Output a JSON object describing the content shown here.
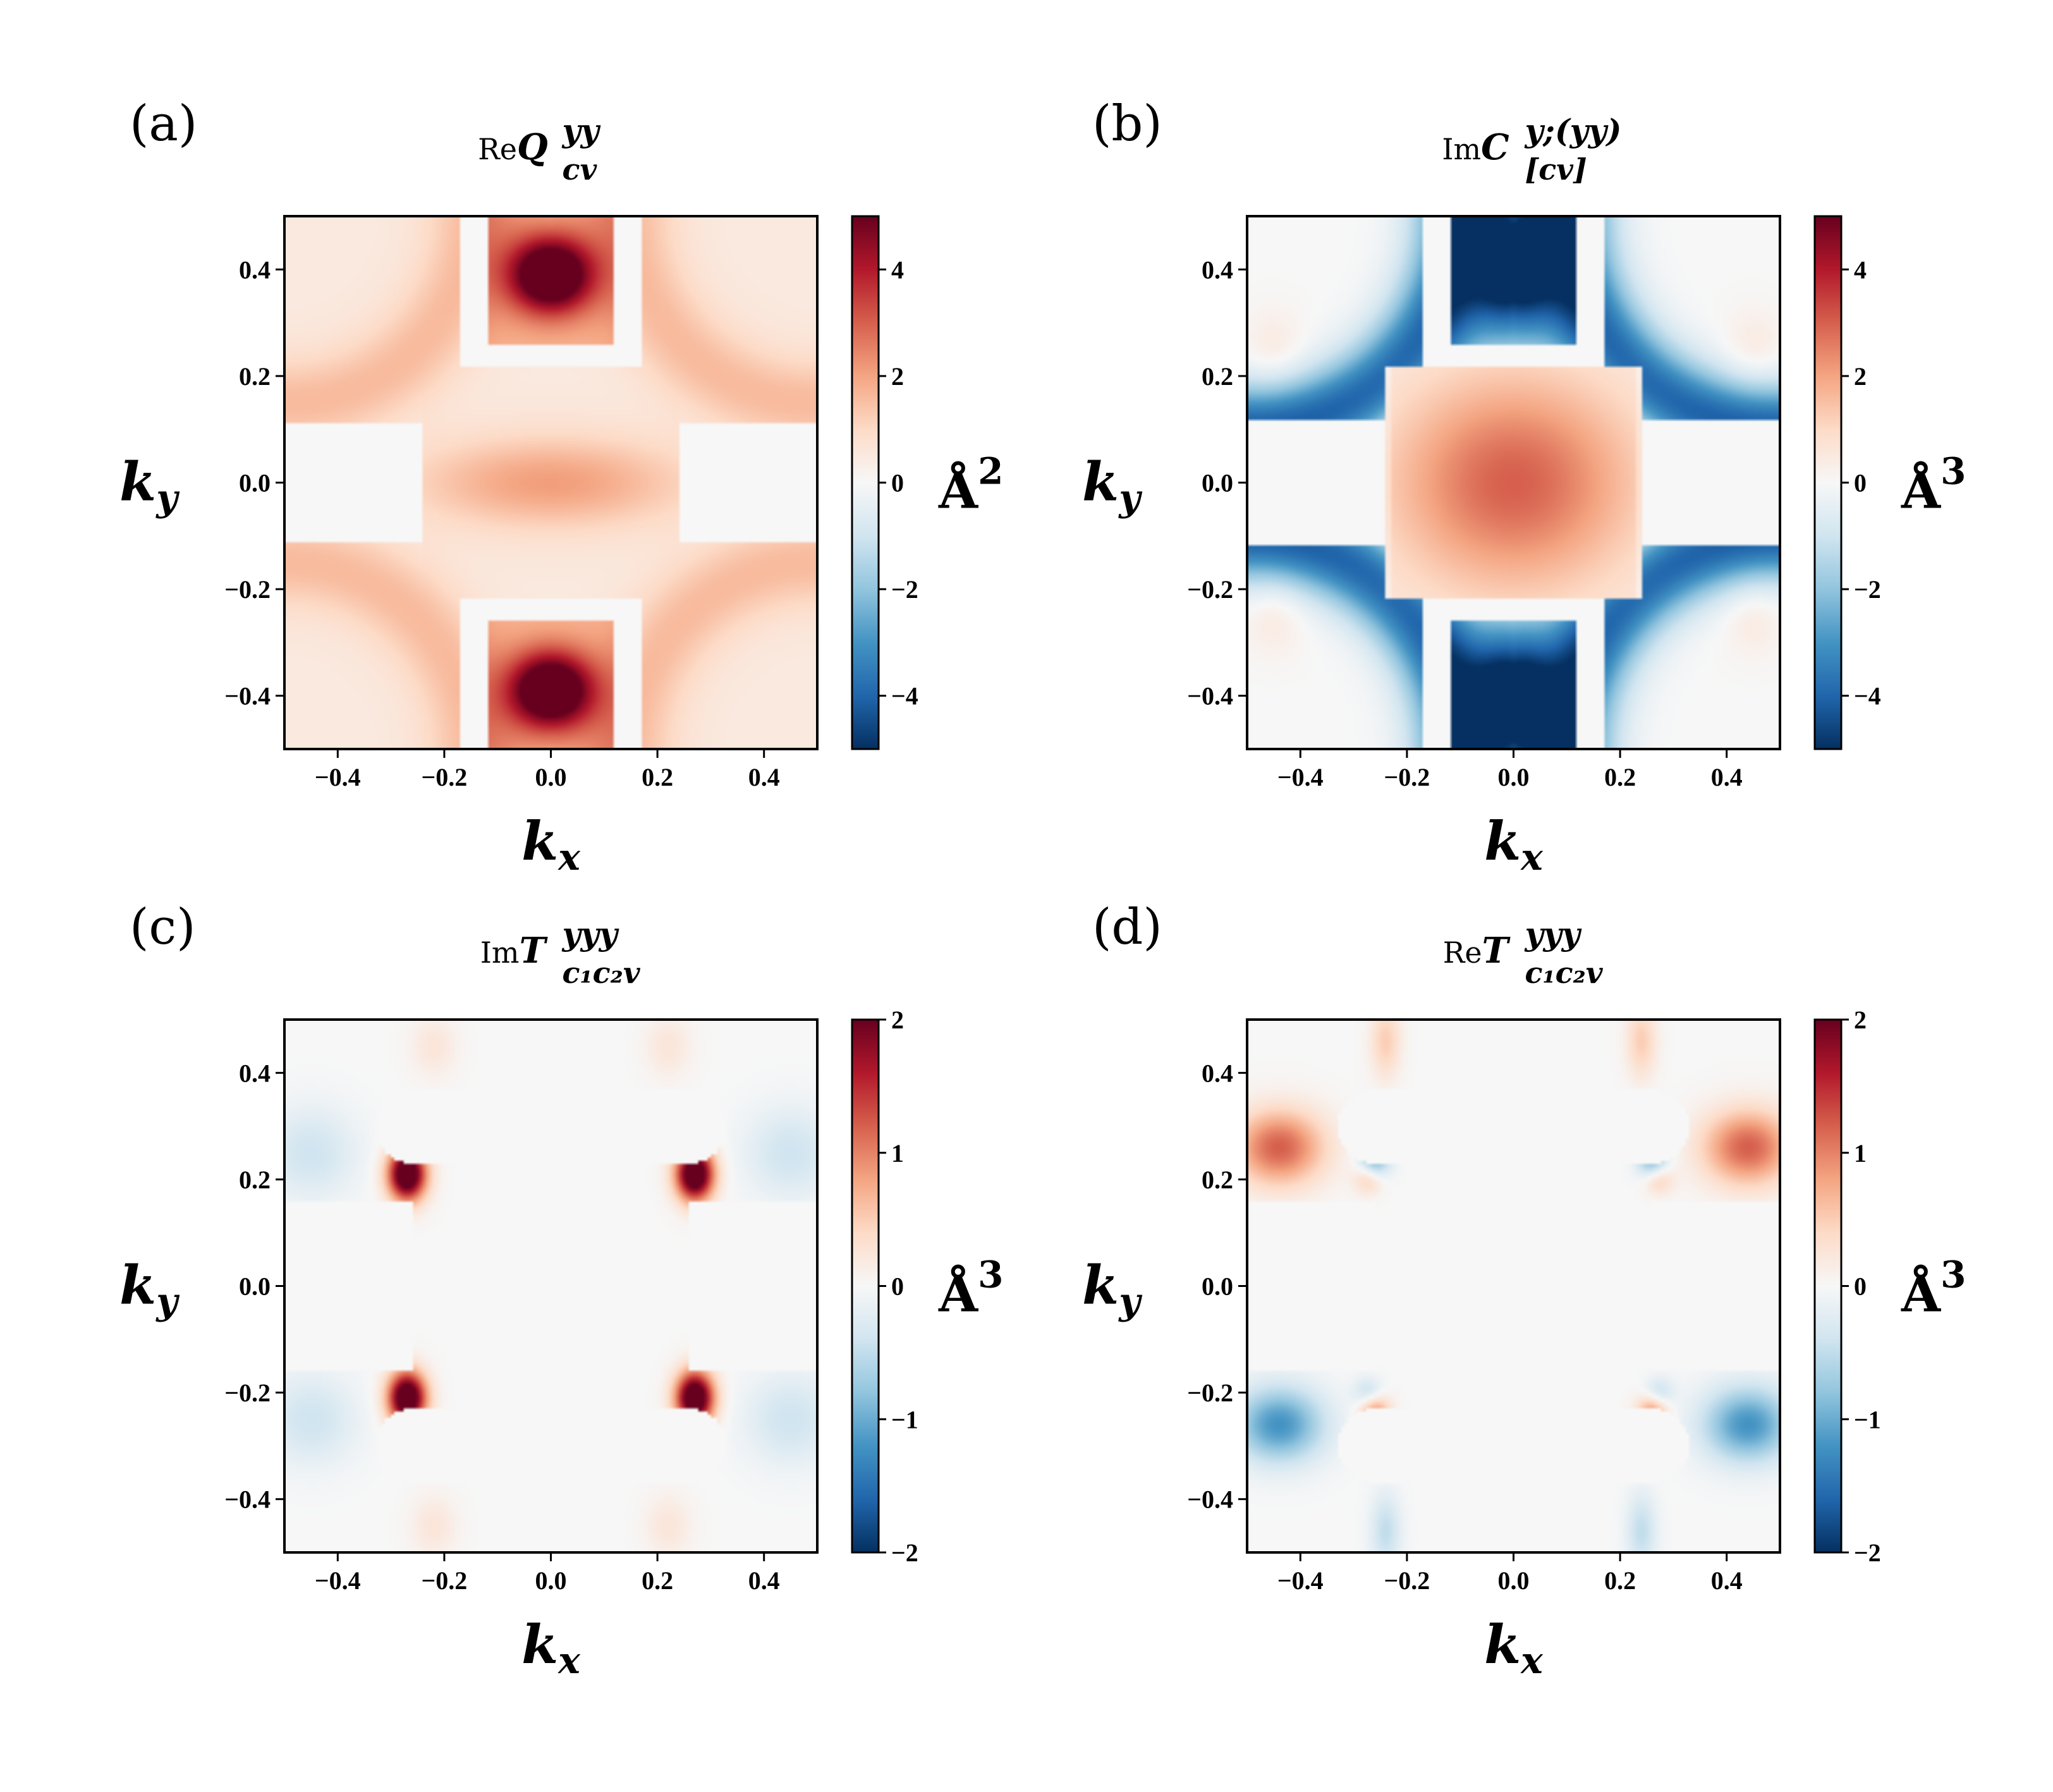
{
  "chart_data": [
    {
      "type": "heatmap",
      "panel_label": "(a)",
      "title": {
        "prefix": "Re",
        "symbol": "Q",
        "superscript": "yy",
        "subscript": "cv"
      },
      "xlabel": {
        "symbol": "k",
        "subscript": "x"
      },
      "ylabel": {
        "symbol": "k",
        "subscript": "y"
      },
      "xlim": [
        -0.5,
        0.5
      ],
      "ylim": [
        -0.5,
        0.5
      ],
      "xticks": [
        "−0.4",
        "−0.2",
        "0.0",
        "0.2",
        "0.4"
      ],
      "yticks": [
        "0.4",
        "0.2",
        "0.0",
        "−0.2",
        "−0.4"
      ],
      "colorbar": {
        "vmin": -5,
        "vmax": 5,
        "ticks": [
          "4",
          "2",
          "0",
          "−2",
          "−4"
        ],
        "unit": "Å",
        "unit_power": "2"
      },
      "field": "a"
    },
    {
      "type": "heatmap",
      "panel_label": "(b)",
      "title": {
        "prefix": "Im",
        "symbol": "C",
        "superscript": "y;(yy)",
        "subscript": "[cv]"
      },
      "xlabel": {
        "symbol": "k",
        "subscript": "x"
      },
      "ylabel": {
        "symbol": "k",
        "subscript": "y"
      },
      "xlim": [
        -0.5,
        0.5
      ],
      "ylim": [
        -0.5,
        0.5
      ],
      "xticks": [
        "−0.4",
        "−0.2",
        "0.0",
        "0.2",
        "0.4"
      ],
      "yticks": [
        "0.4",
        "0.2",
        "0.0",
        "−0.2",
        "−0.4"
      ],
      "colorbar": {
        "vmin": -5,
        "vmax": 5,
        "ticks": [
          "4",
          "2",
          "0",
          "−2",
          "−4"
        ],
        "unit": "Å",
        "unit_power": "3"
      },
      "field": "b"
    },
    {
      "type": "heatmap",
      "panel_label": "(c)",
      "title": {
        "prefix": "Im",
        "symbol": "T",
        "superscript": "yyy",
        "subscript": "c₁c₂v"
      },
      "xlabel": {
        "symbol": "k",
        "subscript": "x"
      },
      "ylabel": {
        "symbol": "k",
        "subscript": "y"
      },
      "xlim": [
        -0.5,
        0.5
      ],
      "ylim": [
        -0.5,
        0.5
      ],
      "xticks": [
        "−0.4",
        "−0.2",
        "0.0",
        "0.2",
        "0.4"
      ],
      "yticks": [
        "0.4",
        "0.2",
        "0.0",
        "−0.2",
        "−0.4"
      ],
      "colorbar": {
        "vmin": -2,
        "vmax": 2,
        "ticks": [
          "2",
          "1",
          "0",
          "−1",
          "−2"
        ],
        "unit": "Å",
        "unit_power": "3"
      },
      "field": "c"
    },
    {
      "type": "heatmap",
      "panel_label": "(d)",
      "title": {
        "prefix": "Re",
        "symbol": "T",
        "superscript": "yyy",
        "subscript": "c₁c₂v"
      },
      "xlabel": {
        "symbol": "k",
        "subscript": "x"
      },
      "ylabel": {
        "symbol": "k",
        "subscript": "y"
      },
      "xlim": [
        -0.5,
        0.5
      ],
      "ylim": [
        -0.5,
        0.5
      ],
      "xticks": [
        "−0.4",
        "−0.2",
        "0.0",
        "0.2",
        "0.4"
      ],
      "yticks": [
        "0.4",
        "0.2",
        "0.0",
        "−0.2",
        "−0.4"
      ],
      "colorbar": {
        "vmin": -2,
        "vmax": 2,
        "ticks": [
          "2",
          "1",
          "0",
          "−1",
          "−2"
        ],
        "unit": "Å",
        "unit_power": "3"
      },
      "field": "d"
    }
  ],
  "colormap": {
    "name": "RdBu_r",
    "stops": [
      "#053061",
      "#2166ac",
      "#4393c3",
      "#92c5de",
      "#d1e5f0",
      "#f7f7f7",
      "#fddbc7",
      "#f4a582",
      "#d6604d",
      "#b2182b",
      "#67001f"
    ]
  }
}
